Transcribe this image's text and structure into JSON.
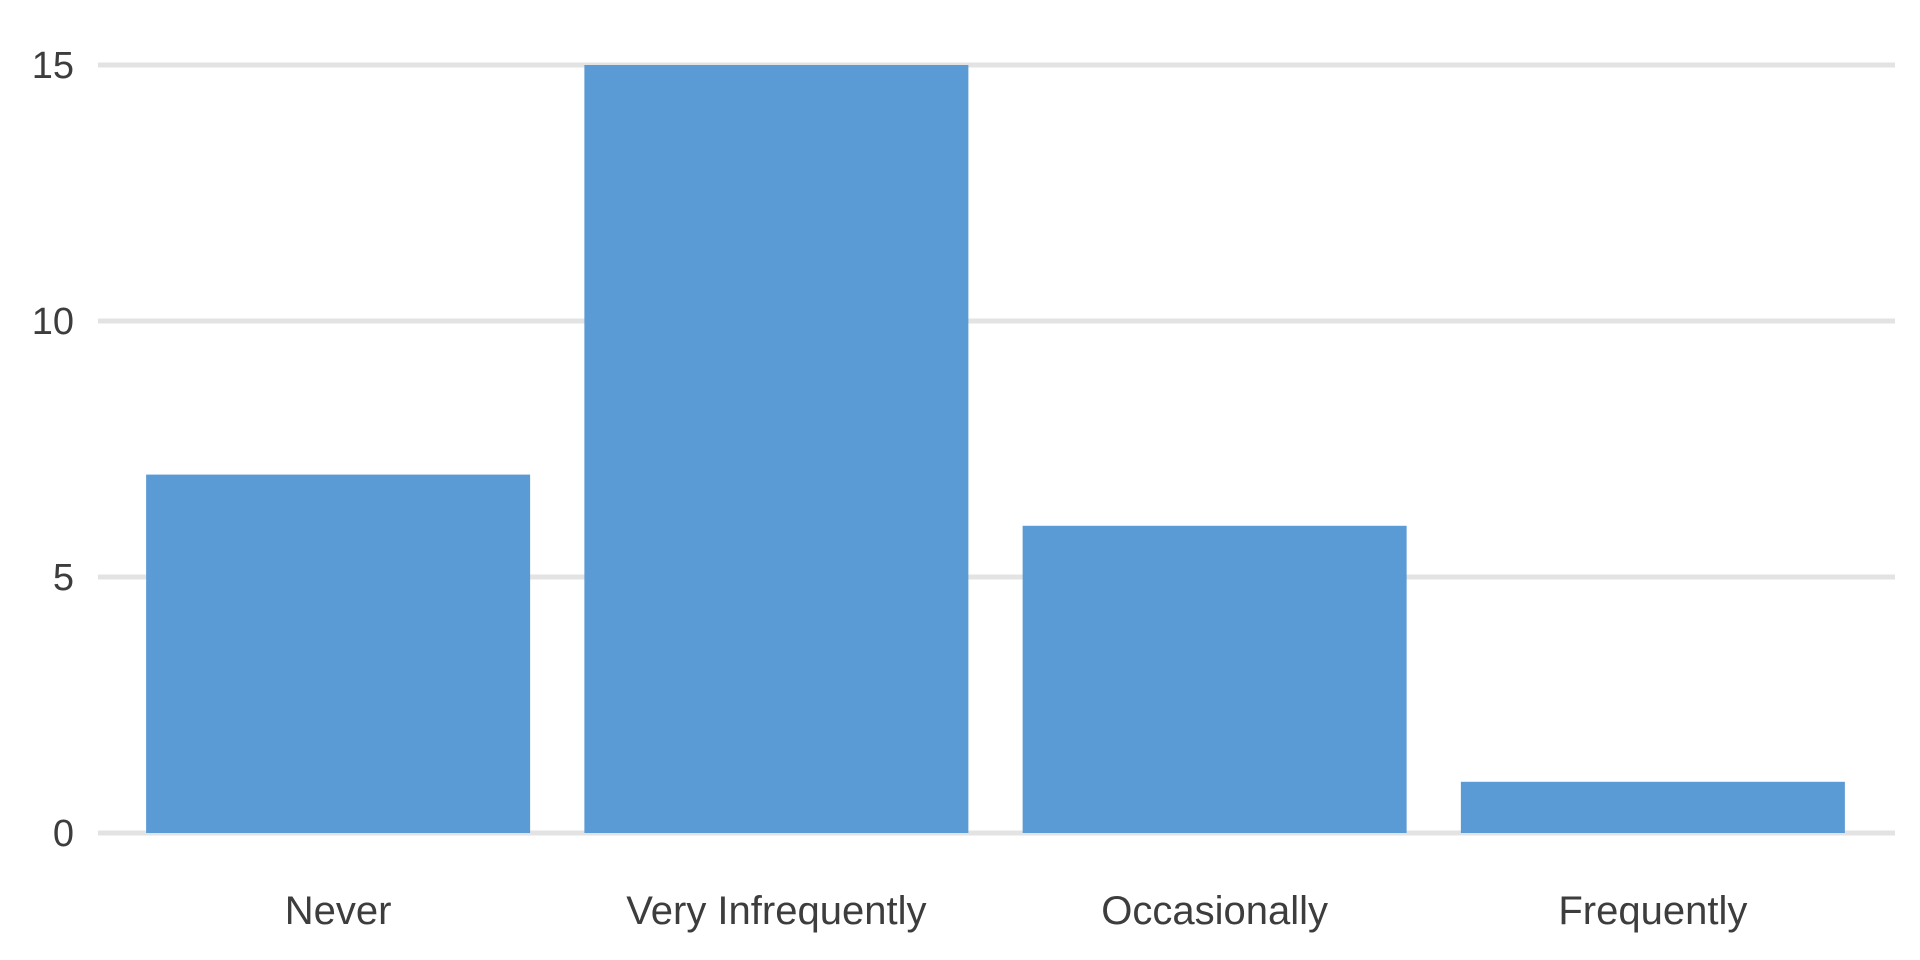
{
  "chart_data": {
    "type": "bar",
    "title": "",
    "xlabel": "",
    "ylabel": "",
    "categories": [
      "Never",
      "Very Infrequently",
      "Occasionally",
      "Frequently"
    ],
    "values": [
      7,
      15,
      6,
      1
    ],
    "ylim": [
      0,
      15
    ],
    "yticks": [
      "0",
      "5",
      "10",
      "15"
    ],
    "grid": true,
    "legend": "none",
    "bar_color": "#5b9bd5"
  }
}
